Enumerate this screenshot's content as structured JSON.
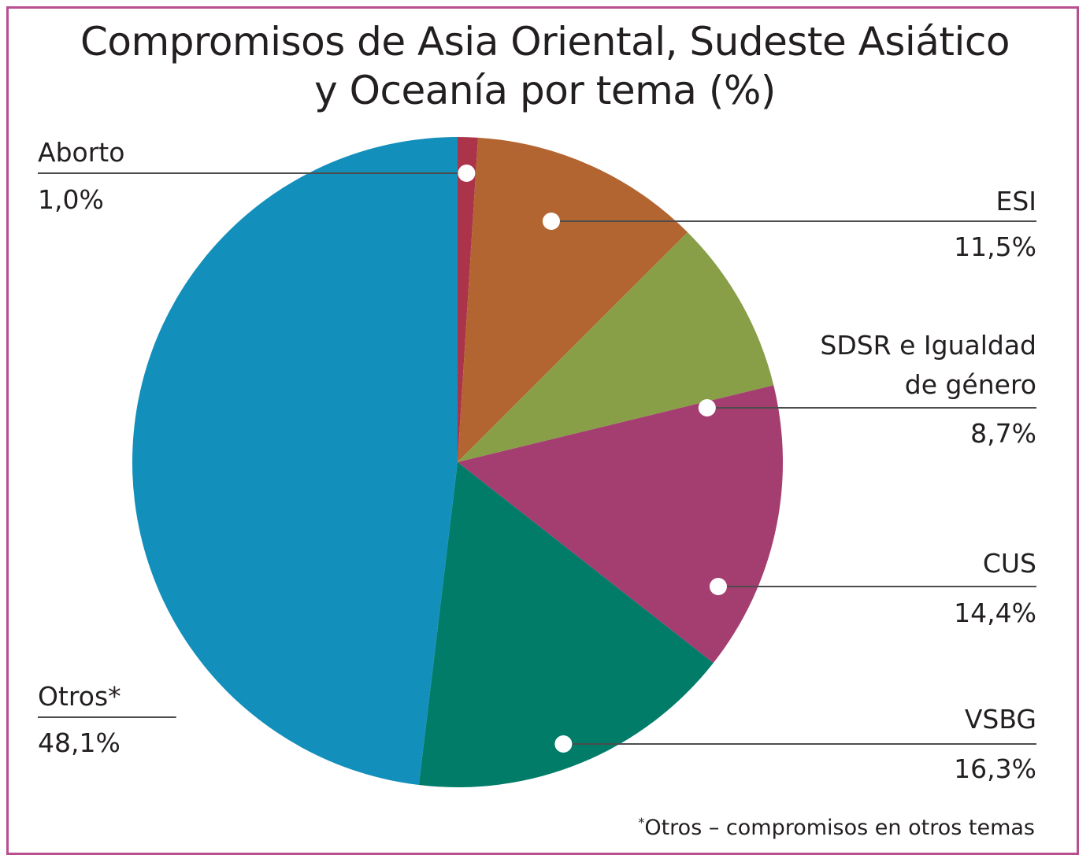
{
  "chart_data": {
    "type": "pie",
    "title_line1": "Compromisos de Asia Oriental, Sudeste Asiático",
    "title_line2": "y Oceanía por tema (%)",
    "slices": [
      {
        "label": "Aborto",
        "label_line2": "",
        "value": 1.0,
        "value_label": "1,0%",
        "color": "#ab334a"
      },
      {
        "label": "ESI",
        "label_line2": "",
        "value": 11.5,
        "value_label": "11,5%",
        "color": "#b36531"
      },
      {
        "label": "SDSR e Igualdad",
        "label_line2": "de género",
        "value": 8.7,
        "value_label": "8,7%",
        "color": "#889f48"
      },
      {
        "label": "CUS",
        "label_line2": "",
        "value": 14.4,
        "value_label": "14,4%",
        "color": "#a43e70"
      },
      {
        "label": "VSBG",
        "label_line2": "",
        "value": 16.3,
        "value_label": "16,3%",
        "color": "#007c69"
      },
      {
        "label": "Otros*",
        "label_line2": "",
        "value": 48.1,
        "value_label": "48,1%",
        "color": "#138fbb"
      }
    ],
    "footnote_mark": "*",
    "footnote": "Otros – compromisos en otros temas"
  },
  "colors": {
    "border": "#b84f8f",
    "text": "#231f20",
    "leader": "#4d4d4d"
  }
}
